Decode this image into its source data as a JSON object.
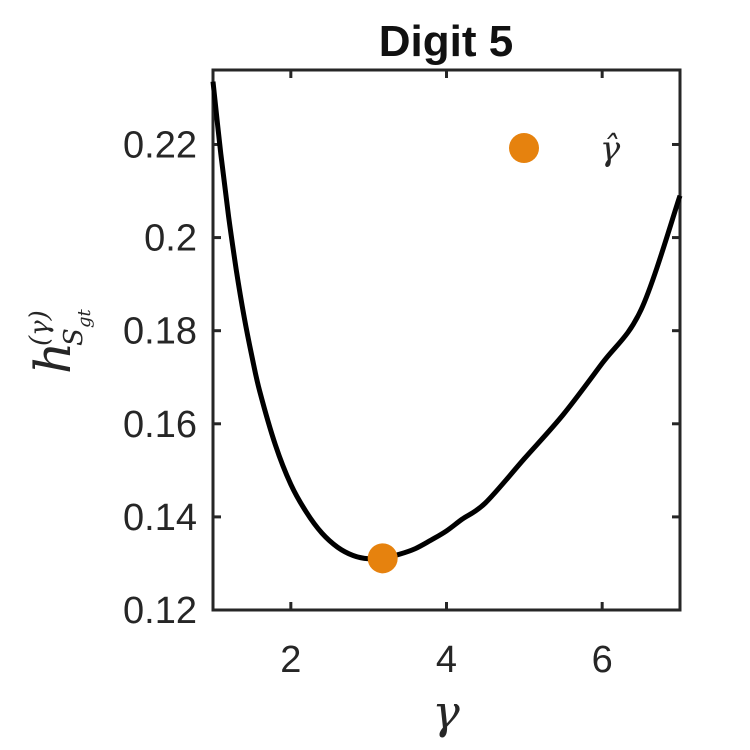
{
  "chart_data": {
    "type": "line",
    "title": "Digit 5",
    "xlabel": "γ",
    "ylabel": {
      "base": "h",
      "superscript": "(γ)",
      "subscript": "S",
      "subsub": "gt"
    },
    "xlim": [
      1,
      7
    ],
    "ylim": [
      0.12,
      0.236
    ],
    "xticks": [
      2,
      4,
      6
    ],
    "yticks": [
      0.12,
      0.14,
      0.16,
      0.18,
      0.2,
      0.22
    ],
    "ytick_labels": [
      "0.12",
      "0.14",
      "0.16",
      "0.18",
      "0.2",
      "0.22"
    ],
    "grid": false,
    "series": [
      {
        "color": "#000000",
        "x": [
          1.0,
          1.1,
          1.2,
          1.3,
          1.4,
          1.5,
          1.6,
          1.8,
          2.0,
          2.2,
          2.4,
          2.6,
          2.8,
          3.0,
          3.2,
          3.4,
          3.6,
          3.8,
          4.0,
          4.2,
          4.5,
          5.0,
          5.5,
          6.0,
          6.5,
          7.0
        ],
        "y": [
          0.2335,
          0.218,
          0.2045,
          0.193,
          0.183,
          0.1745,
          0.167,
          0.1555,
          0.147,
          0.141,
          0.1365,
          0.1335,
          0.1317,
          0.131,
          0.1312,
          0.132,
          0.1332,
          0.135,
          0.137,
          0.1395,
          0.143,
          0.1525,
          0.162,
          0.173,
          0.1845,
          0.209
        ]
      }
    ],
    "marker": {
      "label": "γ̂",
      "x": 3.18,
      "y": 0.1311,
      "color": "#E6820E"
    },
    "legend": {
      "placement": "top-right",
      "entries": [
        {
          "label": "γ̂",
          "color": "#E6820E"
        }
      ]
    }
  }
}
